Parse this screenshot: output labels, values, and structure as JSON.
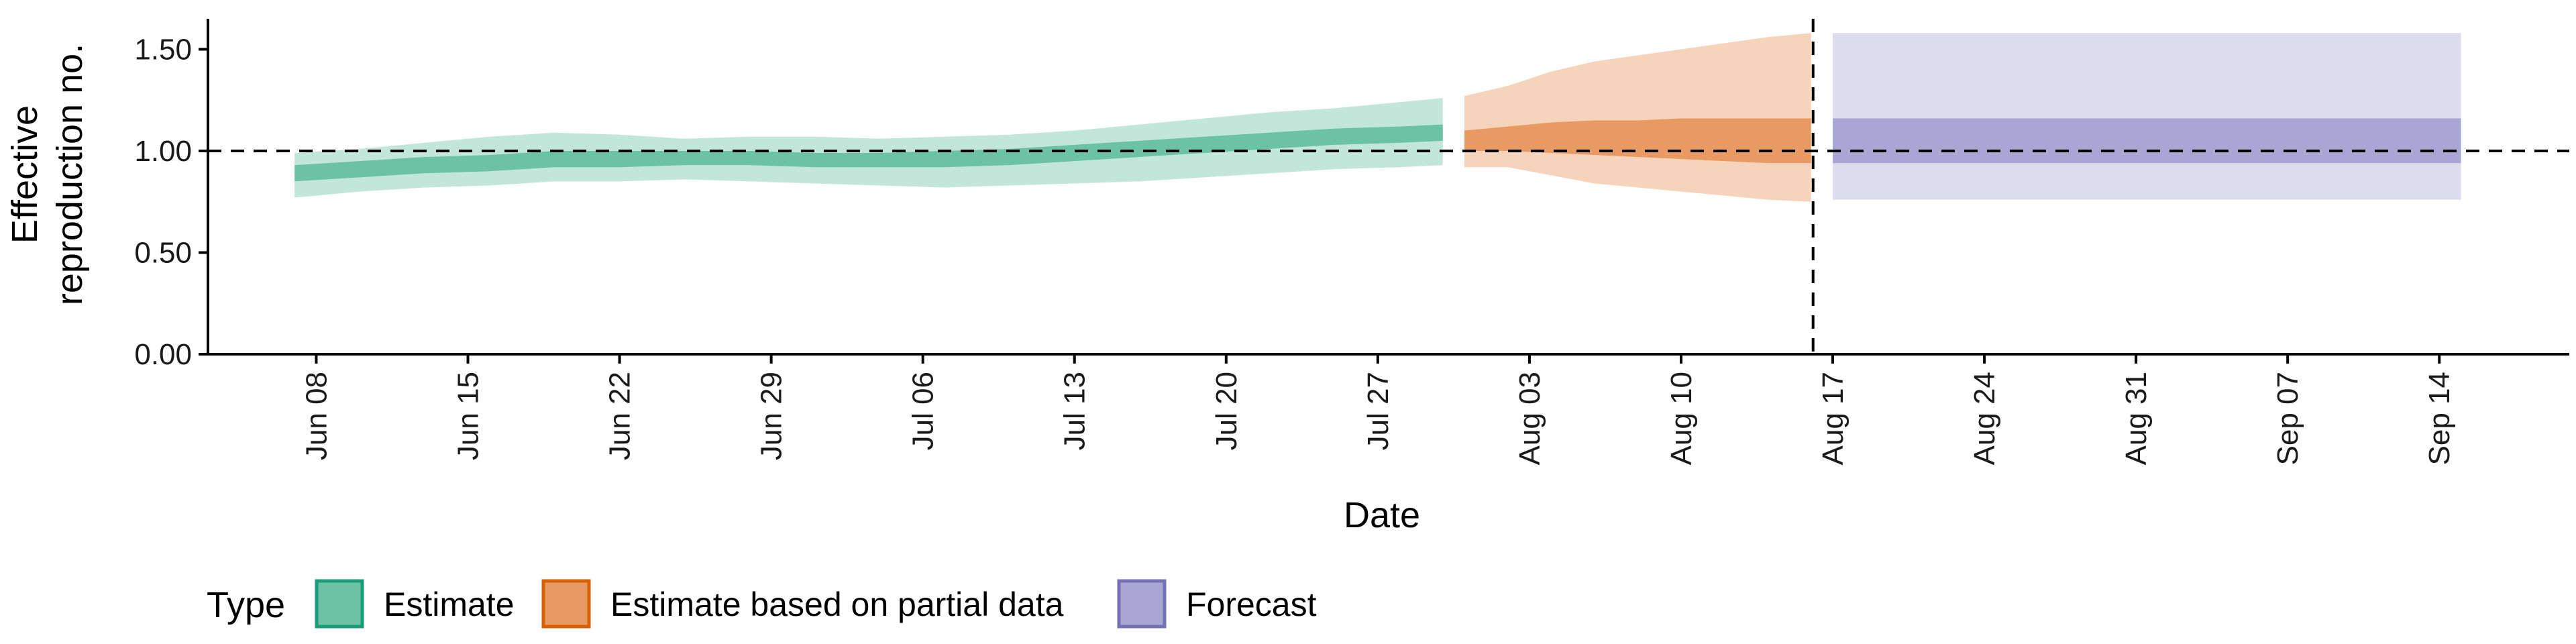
{
  "chart_data": {
    "type": "area",
    "title": "",
    "xlabel": "Date",
    "ylabel": [
      "Effective",
      "reproduction no."
    ],
    "ylim": [
      0,
      1.65
    ],
    "xlim": [
      "2020-06-03",
      "2020-09-20"
    ],
    "y_ticks": [
      0,
      0.5,
      1,
      1.5
    ],
    "y_tick_labels": [
      "0.00",
      "0.50",
      "1.00",
      "1.50"
    ],
    "x_ticks": [
      "2020-06-08",
      "2020-06-15",
      "2020-06-22",
      "2020-06-29",
      "2020-07-06",
      "2020-07-13",
      "2020-07-20",
      "2020-07-27",
      "2020-08-03",
      "2020-08-10",
      "2020-08-17",
      "2020-08-24",
      "2020-08-31",
      "2020-09-07",
      "2020-09-14"
    ],
    "x_tick_labels": [
      "Jun 08",
      "Jun 15",
      "Jun 22",
      "Jun 29",
      "Jul 06",
      "Jul 13",
      "Jul 20",
      "Jul 27",
      "Aug 03",
      "Aug 10",
      "Aug 17",
      "Aug 24",
      "Aug 31",
      "Sep 07",
      "Sep 14"
    ],
    "reference_hline": 1.0,
    "reference_vline": "2020-08-16",
    "legend_title": "Type",
    "legend_position": "bottom-left",
    "series": [
      {
        "name": "Estimate",
        "color_outer": "#c2e6da",
        "color_inner": "#6cc2a4",
        "border": "#1b9e77",
        "x": [
          "2020-06-07",
          "2020-06-10",
          "2020-06-13",
          "2020-06-16",
          "2020-06-19",
          "2020-06-22",
          "2020-06-25",
          "2020-06-28",
          "2020-07-01",
          "2020-07-04",
          "2020-07-07",
          "2020-07-10",
          "2020-07-13",
          "2020-07-16",
          "2020-07-19",
          "2020-07-22",
          "2020-07-25",
          "2020-07-28",
          "2020-07-30"
        ],
        "outer_low": [
          0.77,
          0.8,
          0.82,
          0.83,
          0.85,
          0.85,
          0.86,
          0.85,
          0.84,
          0.83,
          0.82,
          0.83,
          0.84,
          0.85,
          0.87,
          0.89,
          0.91,
          0.92,
          0.93
        ],
        "outer_high": [
          0.99,
          1.01,
          1.04,
          1.07,
          1.09,
          1.08,
          1.06,
          1.07,
          1.07,
          1.06,
          1.07,
          1.08,
          1.1,
          1.13,
          1.16,
          1.19,
          1.21,
          1.24,
          1.26
        ],
        "inner_low": [
          0.85,
          0.87,
          0.89,
          0.9,
          0.92,
          0.92,
          0.93,
          0.93,
          0.92,
          0.92,
          0.92,
          0.93,
          0.95,
          0.97,
          0.99,
          1.01,
          1.03,
          1.04,
          1.05
        ],
        "inner_high": [
          0.93,
          0.95,
          0.97,
          0.98,
          1.0,
          1.0,
          1.0,
          1.0,
          0.99,
          0.99,
          1.0,
          1.01,
          1.03,
          1.05,
          1.07,
          1.09,
          1.11,
          1.12,
          1.13
        ]
      },
      {
        "name": "Estimate based on partial data",
        "color_outer": "#f6d3bb",
        "color_inner": "#e99a62",
        "border": "#d95f02",
        "x": [
          "2020-07-31",
          "2020-08-02",
          "2020-08-04",
          "2020-08-06",
          "2020-08-08",
          "2020-08-10",
          "2020-08-12",
          "2020-08-14",
          "2020-08-16"
        ],
        "outer_low": [
          0.92,
          0.92,
          0.88,
          0.84,
          0.82,
          0.8,
          0.78,
          0.76,
          0.75
        ],
        "outer_high": [
          1.27,
          1.32,
          1.39,
          1.44,
          1.47,
          1.5,
          1.53,
          1.56,
          1.58
        ],
        "inner_low": [
          1.0,
          1.0,
          0.99,
          0.98,
          0.97,
          0.96,
          0.95,
          0.94,
          0.94
        ],
        "inner_high": [
          1.1,
          1.12,
          1.14,
          1.15,
          1.15,
          1.16,
          1.16,
          1.16,
          1.16
        ]
      },
      {
        "name": "Forecast",
        "color_outer": "#dddcee",
        "color_inner": "#a9a6d3",
        "border": "#7570b3",
        "x": [
          "2020-08-17",
          "2020-09-15"
        ],
        "outer_low": [
          0.76,
          0.76
        ],
        "outer_high": [
          1.58,
          1.58
        ],
        "inner_low": [
          0.94,
          0.94
        ],
        "inner_high": [
          1.16,
          1.16
        ]
      }
    ]
  }
}
